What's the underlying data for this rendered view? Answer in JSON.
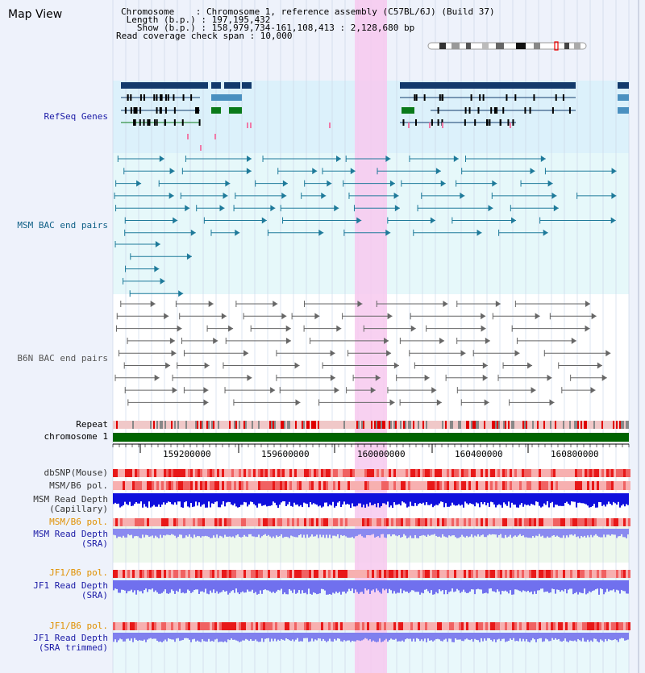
{
  "map_title": "Map View",
  "info": {
    "chromosome": "Chromosome    : Chromosome 1, reference assembly (C57BL/6J) (Build 37)",
    "length": " Length (b.p.) : 197,195,432",
    "show": "   Show (b.p.) : 158,979,734-161,108,413 : 2,128,680 bp",
    "span": "Read coverage check span : 10,000"
  },
  "tracks": {
    "refseq": "RefSeq Genes",
    "msm_bac": "MSM BAC end pairs",
    "b6n_bac": "B6N BAC end pairs",
    "repeat": "Repeat",
    "chromosome": "chromosome 1",
    "dbsnp": "dbSNP(Mouse)",
    "msm_b6_pol_1": "MSM/B6 pol.",
    "msm_depth_cap_1": "MSM Read Depth",
    "msm_depth_cap_2": "(Capillary)",
    "msm_b6_pol_2": "MSM/B6 pol.",
    "msm_depth_sra_1": "MSM Read Depth",
    "msm_depth_sra_2": "(SRA)",
    "jf1_b6_pol_1": "JF1/B6 pol.",
    "jf1_depth_sra_1": "JF1 Read Depth",
    "jf1_depth_sra_2": "(SRA)",
    "jf1_b6_pol_2": "JF1/B6 pol.",
    "jf1_depth_trim_1": "JF1 Read Depth",
    "jf1_depth_trim_2": "(SRA trimmed)"
  },
  "axis": {
    "ticks": [
      "159200000",
      "159600000",
      "160000000",
      "160400000",
      "160800000"
    ]
  },
  "colors": {
    "refseq_label": "#1a1aa6",
    "msm_bac_label": "#0e5f86",
    "b6n_bac_label": "#555555",
    "pol_orange": "#e09000",
    "depth_blue": "#1a1aa6",
    "highlight": "#f7c9ef",
    "chromosome_bar": "#006400"
  }
}
